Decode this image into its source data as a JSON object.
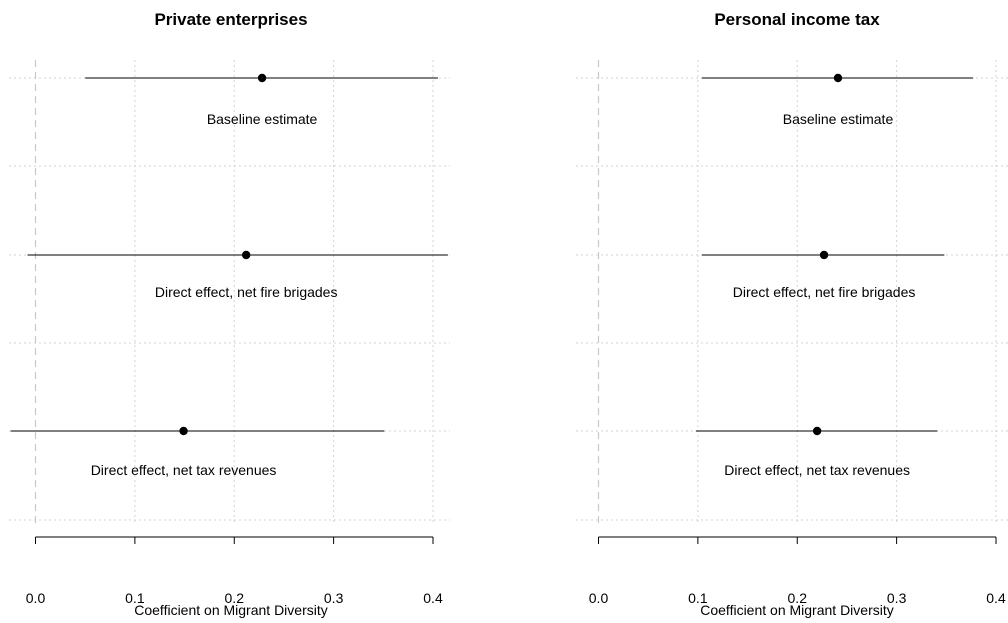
{
  "chart_data": [
    {
      "type": "scatter",
      "title": "Private enterprises",
      "xlabel": "Coefficient on Migrant Diversity",
      "ylabel": "",
      "xlim": [
        -0.025,
        0.42
      ],
      "xticks": [
        0.0,
        0.1,
        0.2,
        0.3,
        0.4
      ],
      "tick_labels": [
        "0.0",
        "0.1",
        "0.2",
        "0.3",
        "0.4"
      ],
      "reference_line": 0.0,
      "grid": true,
      "points": [
        {
          "label": "Baseline estimate",
          "estimate": 0.228,
          "ci_low": 0.05,
          "ci_high": 0.405
        },
        {
          "label": "Direct effect, net fire brigades",
          "estimate": 0.212,
          "ci_low": -0.008,
          "ci_high": 0.415
        },
        {
          "label": "Direct effect, net tax revenues",
          "estimate": 0.149,
          "ci_low": -0.025,
          "ci_high": 0.351
        }
      ]
    },
    {
      "type": "scatter",
      "title": "Personal income tax",
      "xlabel": "Coefficient on Migrant Diversity",
      "ylabel": "",
      "xlim": [
        -0.022,
        0.41
      ],
      "xticks": [
        0.0,
        0.1,
        0.2,
        0.3,
        0.4
      ],
      "tick_labels": [
        "0.0",
        "0.1",
        "0.2",
        "0.3",
        "0.4"
      ],
      "reference_line": 0.0,
      "grid": true,
      "points": [
        {
          "label": "Baseline estimate",
          "estimate": 0.241,
          "ci_low": 0.104,
          "ci_high": 0.377
        },
        {
          "label": "Direct effect, net fire brigades",
          "estimate": 0.227,
          "ci_low": 0.104,
          "ci_high": 0.348
        },
        {
          "label": "Direct effect, net tax revenues",
          "estimate": 0.22,
          "ci_low": 0.098,
          "ci_high": 0.341
        }
      ]
    }
  ],
  "colors": {
    "point": "#000000",
    "interval": "#000000",
    "grid": "#d3d3d3",
    "reference_line": "#c8c8c8"
  }
}
